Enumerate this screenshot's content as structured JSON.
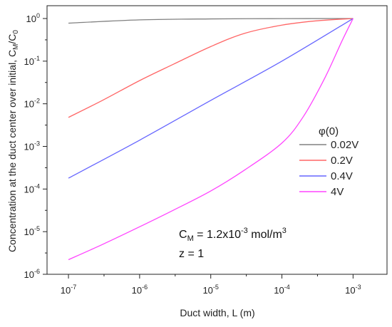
{
  "chart_data": {
    "type": "line",
    "xlabel": "Duct width,  L (m)",
    "ylabel": "Concentration at the duct center over initial, C",
    "ylabel_sub1": "M",
    "ylabel_slash": "/C",
    "ylabel_sub2": "0",
    "x_scale": "log",
    "y_scale": "log",
    "xlim": [
      5e-08,
      0.003
    ],
    "ylim": [
      1e-06,
      2
    ],
    "x_ticks": [
      {
        "value": 1e-07,
        "base": "10",
        "exp": "-7"
      },
      {
        "value": 1e-06,
        "base": "10",
        "exp": "-6"
      },
      {
        "value": 1e-05,
        "base": "10",
        "exp": "-5"
      },
      {
        "value": 0.0001,
        "base": "10",
        "exp": "-4"
      },
      {
        "value": 0.001,
        "base": "10",
        "exp": "-3"
      }
    ],
    "y_ticks": [
      {
        "value": 1e-06,
        "base": "10",
        "exp": "-6"
      },
      {
        "value": 1e-05,
        "base": "10",
        "exp": "-5"
      },
      {
        "value": 0.0001,
        "base": "10",
        "exp": "-4"
      },
      {
        "value": 0.001,
        "base": "10",
        "exp": "-3"
      },
      {
        "value": 0.01,
        "base": "10",
        "exp": "-2"
      },
      {
        "value": 0.1,
        "base": "10",
        "exp": "-1"
      },
      {
        "value": 1,
        "base": "10",
        "exp": "0"
      }
    ],
    "grid": false,
    "legend_title": "φ(0)",
    "legend_position": "right",
    "series": [
      {
        "name": "0.02V",
        "color": "#808080",
        "x": [
          1e-07,
          1e-06,
          1e-05,
          0.0001,
          0.001
        ],
        "y": [
          0.78,
          0.93,
          0.98,
          0.995,
          1.0
        ]
      },
      {
        "name": "0.2V",
        "color": "#ff6666",
        "x": [
          1e-07,
          3e-07,
          1e-06,
          3e-06,
          1e-05,
          3e-05,
          0.0001,
          0.0003,
          0.001
        ],
        "y": [
          0.0048,
          0.012,
          0.035,
          0.085,
          0.22,
          0.45,
          0.7,
          0.88,
          1.0
        ]
      },
      {
        "name": "0.4V",
        "color": "#6666ff",
        "x": [
          1e-07,
          1e-06,
          1e-05,
          0.0001,
          0.001
        ],
        "y": [
          0.00018,
          0.0014,
          0.012,
          0.1,
          1.0
        ]
      },
      {
        "name": "4V",
        "color": "#ff44ff",
        "x": [
          1e-07,
          3e-07,
          1e-06,
          3e-06,
          1e-05,
          3e-05,
          0.0001,
          0.0002,
          0.0004,
          0.0007,
          0.001
        ],
        "y": [
          2.2e-06,
          5e-06,
          1.3e-05,
          3.2e-05,
          9e-05,
          0.00028,
          0.0012,
          0.005,
          0.04,
          0.3,
          1.0
        ]
      }
    ],
    "annotations": {
      "line1_main": "C",
      "line1_sub": "M",
      "line1_rest": " = 1.2x10",
      "line1_exp": "-3",
      "line1_unit": " mol/m",
      "line1_unit_exp": "3",
      "line2": "z = 1"
    }
  }
}
